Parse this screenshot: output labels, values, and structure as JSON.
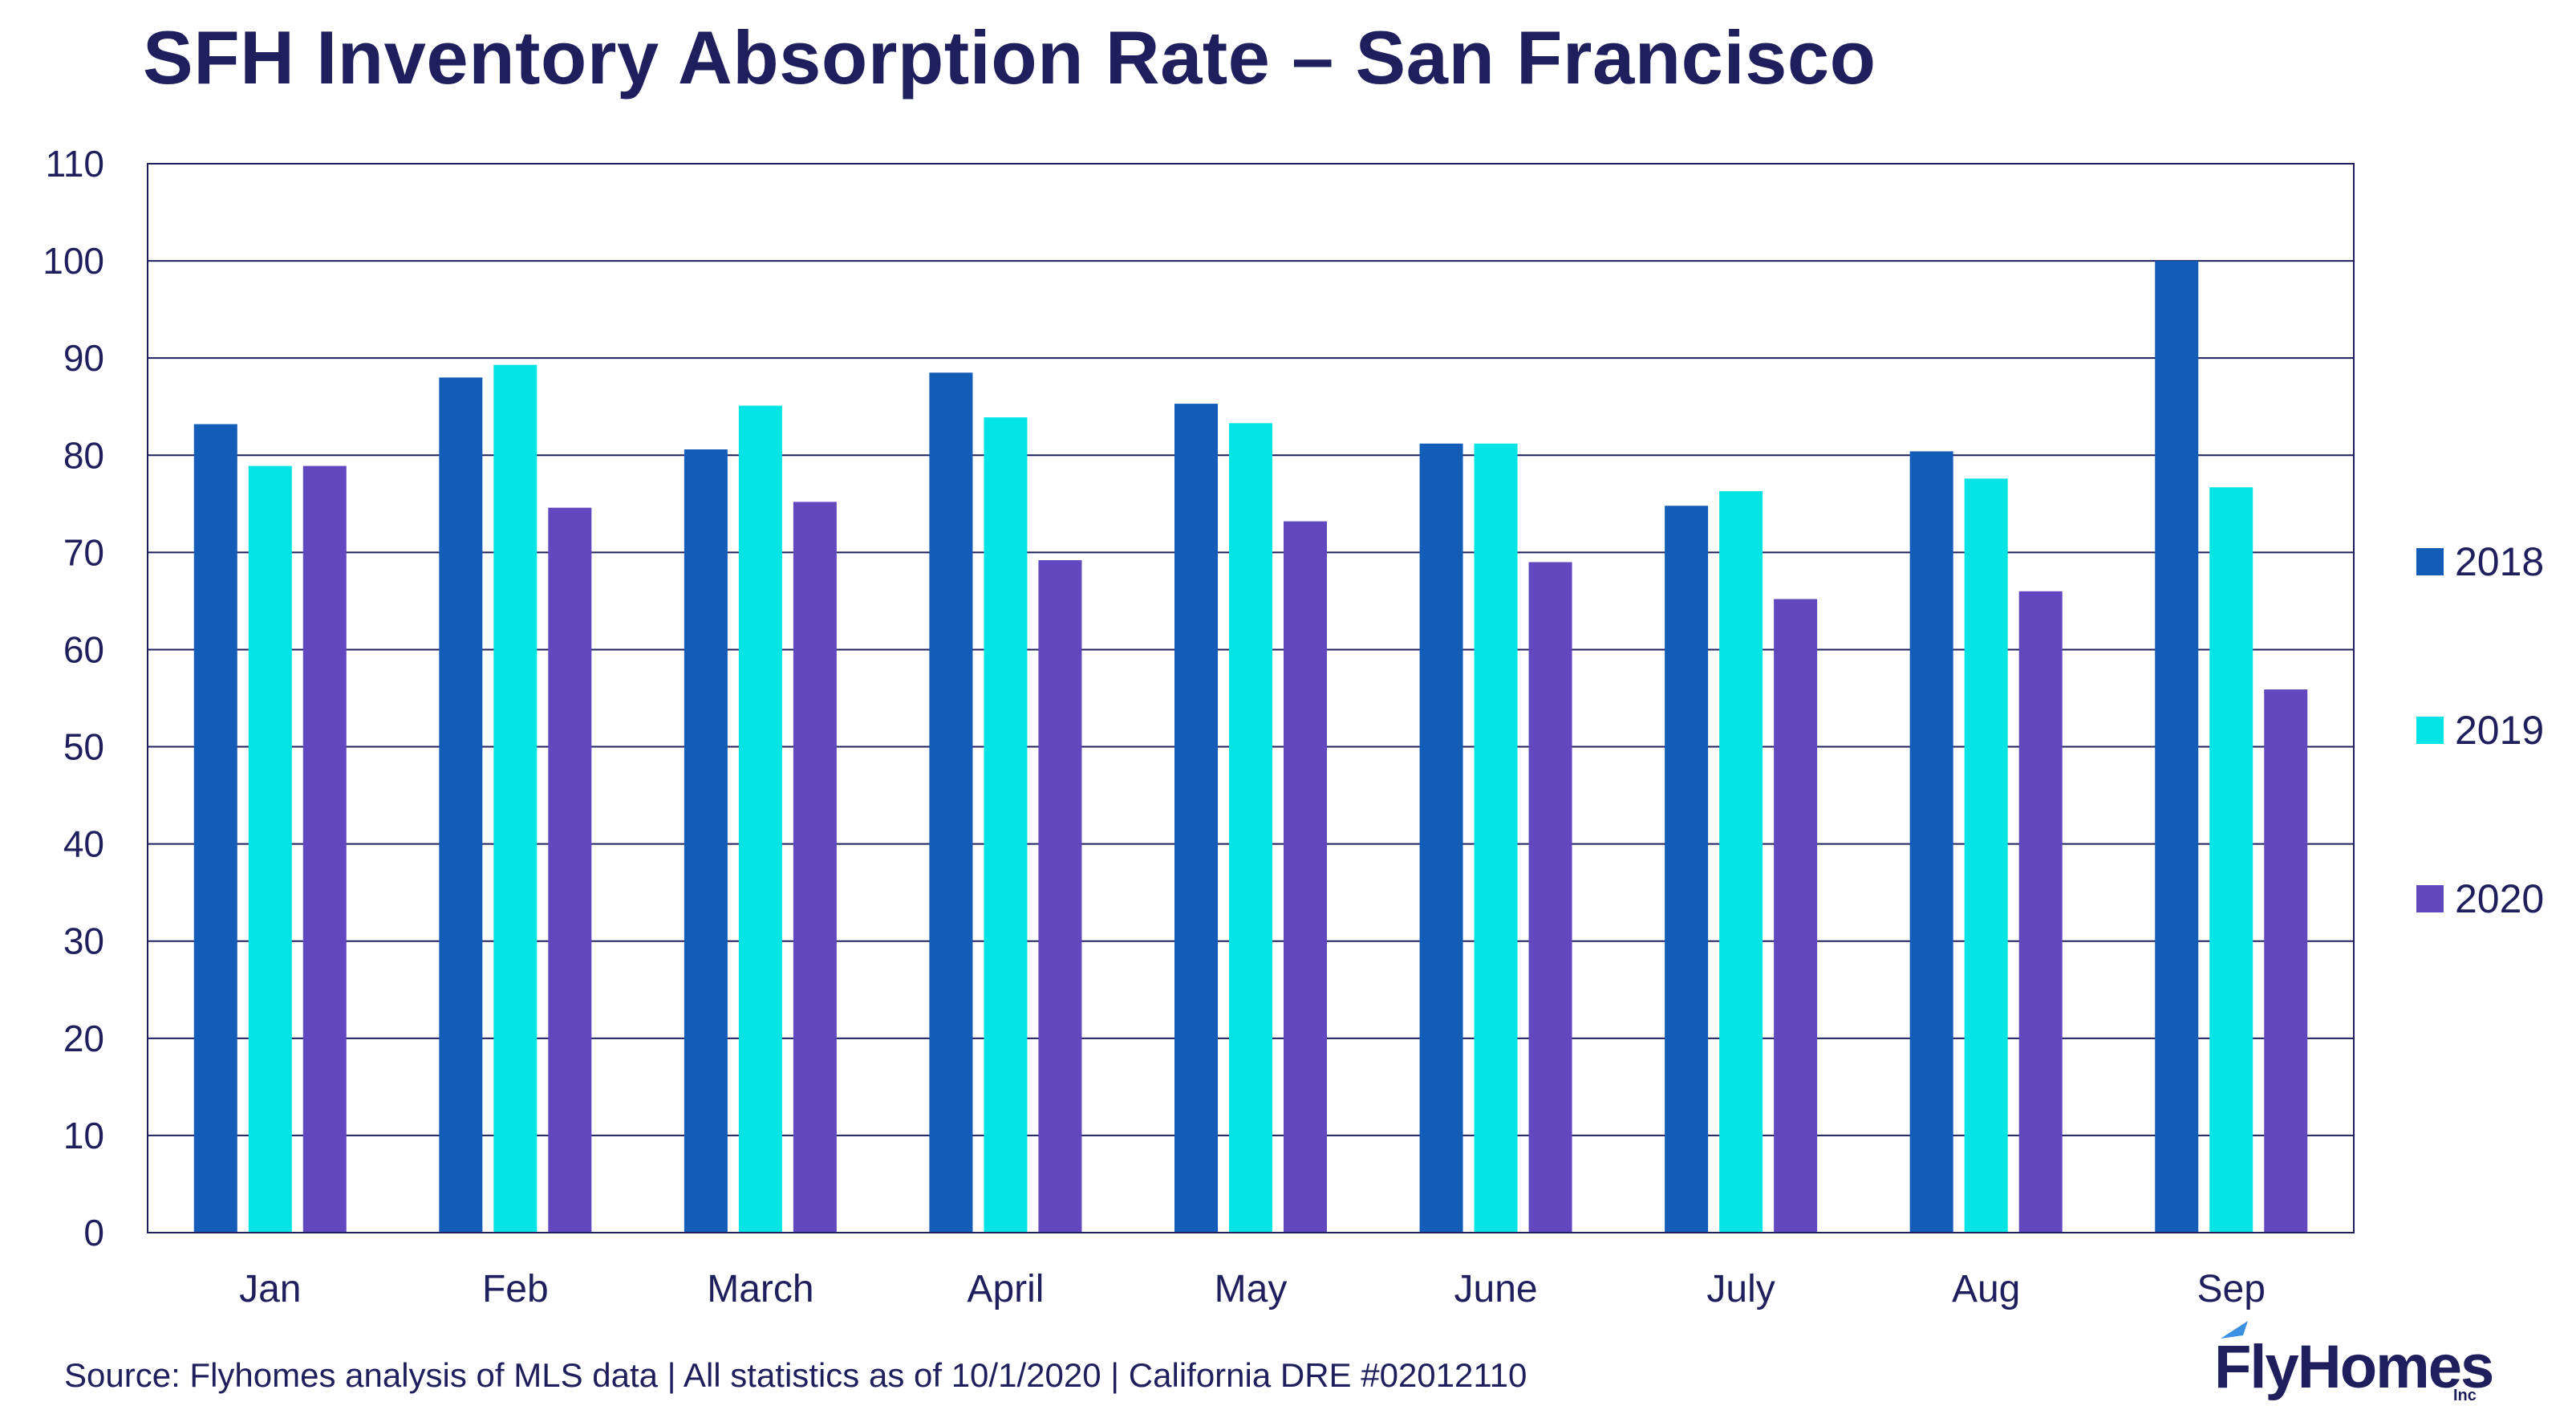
{
  "chart_data": {
    "type": "bar",
    "title": "SFH Inventory Absorption Rate – San Francisco",
    "categories": [
      "Jan",
      "Feb",
      "March",
      "April",
      "May",
      "June",
      "July",
      "Aug",
      "Sep"
    ],
    "series": [
      {
        "name": "2018",
        "color": "#135cb8",
        "values": [
          83.2,
          88.0,
          80.6,
          88.5,
          85.3,
          81.2,
          74.8,
          80.4,
          100.0
        ]
      },
      {
        "name": "2019",
        "color": "#05e4e4",
        "values": [
          78.9,
          89.3,
          85.1,
          83.9,
          83.3,
          81.2,
          76.3,
          77.6,
          76.7
        ]
      },
      {
        "name": "2020",
        "color": "#6248bf",
        "values": [
          78.9,
          74.6,
          75.2,
          69.2,
          73.2,
          69.0,
          65.2,
          66.0,
          55.9
        ]
      }
    ],
    "ylim": [
      0,
      110
    ],
    "yticks": [
      0,
      10,
      20,
      30,
      40,
      50,
      60,
      70,
      80,
      90,
      100,
      110
    ],
    "grid": true,
    "legend_position": "right"
  },
  "footer": {
    "source": "Source: Flyhomes analysis of MLS data | All statistics as of 10/1/2020 | California DRE #02012110"
  },
  "brand": {
    "logo_text": "FlyHomes",
    "logo_suffix": "Inc",
    "text_color": "#1e1f5c",
    "axis_color": "#1e1f5c"
  }
}
